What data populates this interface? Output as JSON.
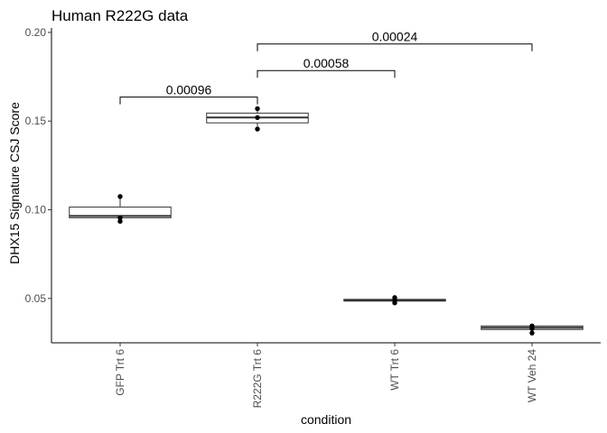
{
  "chart_data": {
    "type": "box",
    "title": "Human R222G data",
    "xlabel": "condition",
    "ylabel": "DHX15 Signature CSJ Score",
    "ylim": [
      0.025,
      0.2025
    ],
    "yticks": [
      0.05,
      0.1,
      0.15,
      0.2
    ],
    "ytick_labels": [
      "0.05",
      "0.10",
      "0.15",
      "0.20"
    ],
    "categories": [
      "GFP Trt 6",
      "R222G Trt 6",
      "WT Trt 6",
      "WT Veh 24"
    ],
    "boxes": [
      {
        "q1": 0.0955,
        "median": 0.0965,
        "q3": 0.1015
      },
      {
        "q1": 0.149,
        "median": 0.152,
        "q3": 0.1545
      },
      {
        "q1": 0.0485,
        "median": 0.049,
        "q3": 0.0495
      },
      {
        "q1": 0.0325,
        "median": 0.0335,
        "q3": 0.0345
      }
    ],
    "points": [
      [
        0.0935,
        0.0955,
        0.1075
      ],
      [
        0.1455,
        0.152,
        0.157
      ],
      [
        0.0475,
        0.049,
        0.0505
      ],
      [
        0.0305,
        0.033,
        0.0345
      ]
    ],
    "comparisons": [
      {
        "from": 0,
        "to": 1,
        "y": 0.1635,
        "label": "0.00096"
      },
      {
        "from": 1,
        "to": 2,
        "y": 0.1785,
        "label": "0.00058"
      },
      {
        "from": 1,
        "to": 3,
        "y": 0.1935,
        "label": "0.00024"
      }
    ],
    "grid": false,
    "legend": "none"
  }
}
